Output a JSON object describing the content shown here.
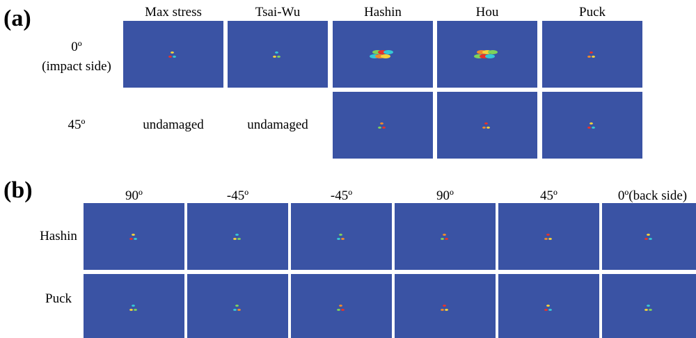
{
  "panels": [
    {
      "label": "(a)",
      "columns": [
        "Max stress",
        "Tsai-Wu",
        "Hashin",
        "Hou",
        "Puck"
      ],
      "rows": [
        {
          "label": [
            "0º",
            "(impact side)"
          ],
          "cells": [
            null,
            null,
            null,
            null,
            null
          ]
        },
        {
          "label": [
            "45º"
          ],
          "cells": [
            "undamaged",
            "undamaged",
            null,
            null,
            null
          ]
        }
      ]
    },
    {
      "label": "(b)",
      "columns": [
        "90º",
        "-45º",
        "-45º",
        "90º",
        "45º",
        "0º(back side)"
      ],
      "rows": [
        {
          "label": [
            "Hashin"
          ],
          "cells": [
            null,
            null,
            null,
            null,
            null,
            null
          ]
        },
        {
          "label": [
            "Puck"
          ],
          "cells": [
            null,
            null,
            null,
            null,
            null,
            null
          ]
        }
      ]
    }
  ]
}
